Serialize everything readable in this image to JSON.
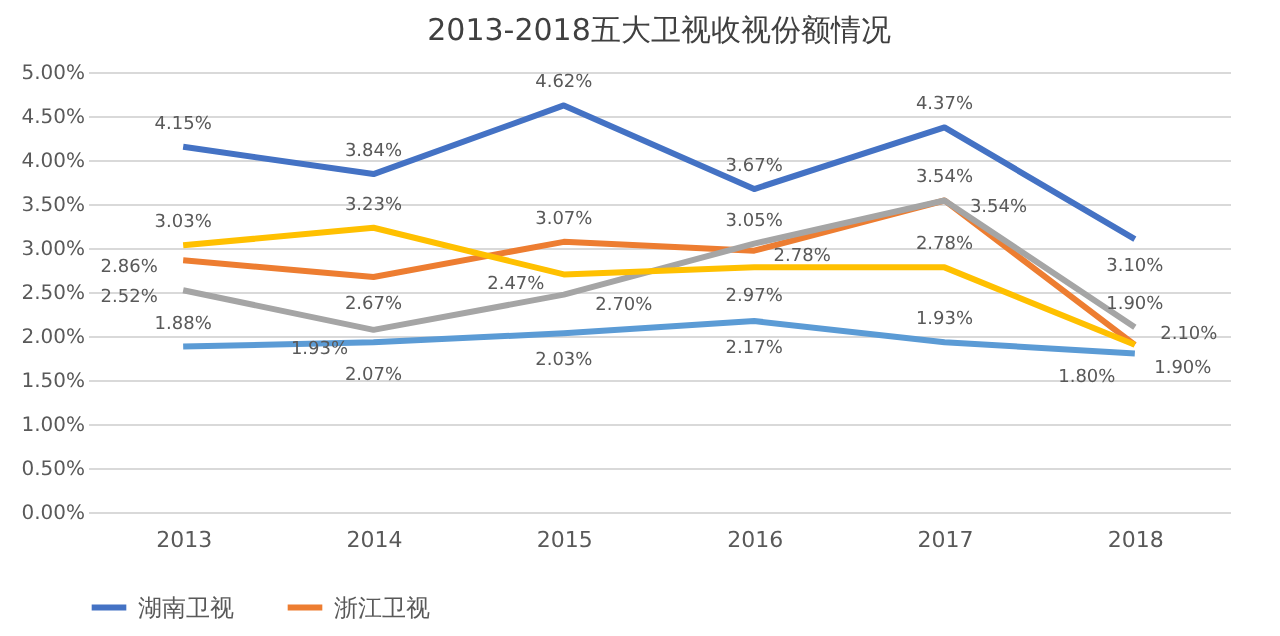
{
  "chart_data": {
    "type": "line",
    "title": "2013-2018五大卫视收视份额情况",
    "categories": [
      "2013",
      "2014",
      "2015",
      "2016",
      "2017",
      "2018"
    ],
    "series": [
      {
        "name": "湖南卫视",
        "color": "#4472c4",
        "values": [
          4.15,
          3.84,
          4.62,
          3.67,
          4.37,
          3.1
        ],
        "value_labels": [
          "4.15%",
          "3.84%",
          "4.62%",
          "3.67%",
          "4.37%",
          "3.10%"
        ]
      },
      {
        "name": "浙江卫视",
        "color": "#ed7d31",
        "values": [
          2.86,
          2.67,
          3.07,
          2.97,
          3.54,
          1.9
        ],
        "value_labels": [
          "2.86%",
          "2.67%",
          "3.07%",
          "2.97%",
          "3.54%",
          "1.90%"
        ]
      },
      {
        "color": "#a5a5a5",
        "values": [
          2.52,
          2.07,
          2.47,
          3.05,
          3.54,
          2.1
        ],
        "value_labels": [
          "2.52%",
          "2.07%",
          "2.47%",
          "3.05%",
          "3.54%",
          "2.10%"
        ]
      },
      {
        "color": "#ffc000",
        "values": [
          3.03,
          3.23,
          2.7,
          2.78,
          2.78,
          1.9
        ],
        "value_labels": [
          "3.03%",
          "3.23%",
          "2.70%",
          "2.78%",
          "2.78%",
          "1.90%"
        ]
      },
      {
        "color": "#5b9bd5",
        "values": [
          1.88,
          1.93,
          2.03,
          2.17,
          1.93,
          1.8
        ],
        "value_labels": [
          "1.88%",
          "1.93%",
          "2.03%",
          "2.17%",
          "1.93%",
          "1.80%"
        ]
      }
    ],
    "ylim": [
      0,
      5
    ],
    "yticks": [
      {
        "value": 0,
        "label": "0.00%"
      },
      {
        "value": 0.5,
        "label": "0.50%"
      },
      {
        "value": 1,
        "label": "1.00%"
      },
      {
        "value": 1.5,
        "label": "1.50%"
      },
      {
        "value": 2,
        "label": "2.00%"
      },
      {
        "value": 2.5,
        "label": "2.50%"
      },
      {
        "value": 3,
        "label": "3.00%"
      },
      {
        "value": 3.5,
        "label": "3.50%"
      },
      {
        "value": 4,
        "label": "4.00%"
      },
      {
        "value": 4.5,
        "label": "4.50%"
      },
      {
        "value": 5,
        "label": "5.00%"
      }
    ],
    "grid": "y",
    "legend": "bottom",
    "marker": "none",
    "line_style": "solid"
  }
}
